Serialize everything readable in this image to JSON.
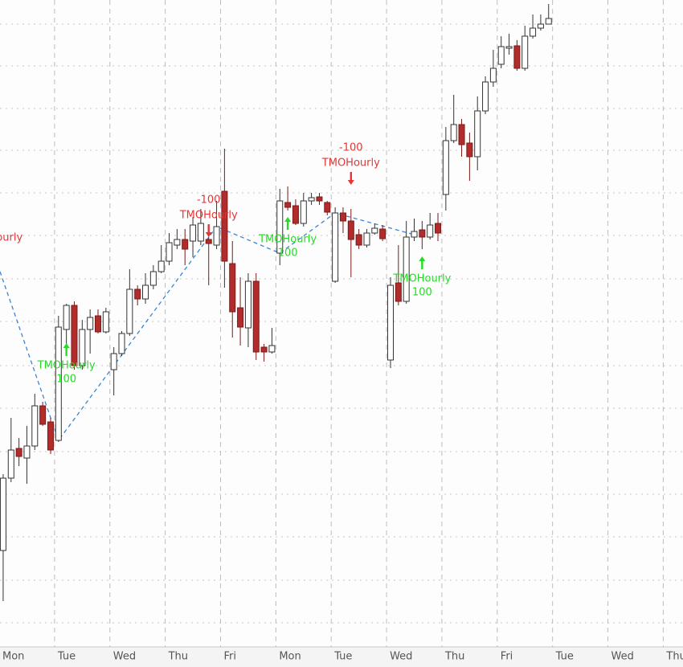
{
  "chart_data": {
    "type": "candlestick",
    "x": [
      0,
      1,
      2,
      3,
      4,
      5,
      6,
      7,
      8,
      9,
      10,
      11,
      12,
      13,
      14,
      15,
      16,
      17,
      18,
      19,
      20,
      21,
      22,
      23,
      24,
      25,
      26,
      27,
      28,
      29,
      30,
      31,
      32,
      33,
      34,
      35,
      36,
      37,
      38,
      39,
      40,
      41,
      42,
      43,
      44,
      45,
      46,
      47,
      48,
      49,
      50,
      51,
      52,
      53,
      54,
      55,
      56,
      57,
      58,
      59,
      60,
      61,
      62,
      63,
      64,
      65,
      66,
      67,
      68,
      69
    ],
    "open": [
      315,
      405,
      442,
      430,
      445,
      495,
      475,
      452,
      590,
      620,
      545,
      590,
      607,
      587,
      540,
      560,
      585,
      640,
      628,
      645,
      662,
      675,
      695,
      702,
      700,
      700,
      702,
      695,
      762,
      672,
      617,
      592,
      650,
      568,
      562,
      685,
      748,
      744,
      722,
      750,
      755,
      748,
      650,
      735,
      725,
      708,
      695,
      710,
      715,
      552,
      648,
      625,
      705,
      714,
      705,
      722,
      758,
      825,
      845,
      822,
      805,
      862,
      898,
      920,
      940,
      943,
      915,
      955,
      965,
      970
    ],
    "high": [
      410,
      480,
      455,
      470,
      510,
      500,
      480,
      607,
      622,
      625,
      602,
      615,
      615,
      617,
      568,
      588,
      665,
      645,
      660,
      670,
      695,
      710,
      715,
      715,
      730,
      740,
      720,
      750,
      815,
      700,
      655,
      660,
      660,
      572,
      592,
      765,
      768,
      752,
      760,
      760,
      760,
      750,
      742,
      742,
      740,
      715,
      715,
      722,
      720,
      655,
      695,
      725,
      728,
      725,
      735,
      735,
      842,
      882,
      852,
      835,
      880,
      905,
      938,
      955,
      958,
      950,
      968,
      982,
      982,
      995
    ],
    "low": [
      252,
      400,
      420,
      398,
      440,
      470,
      435,
      450,
      560,
      540,
      540,
      560,
      585,
      585,
      508,
      557,
      582,
      620,
      622,
      640,
      660,
      670,
      690,
      670,
      680,
      695,
      645,
      690,
      642,
      580,
      570,
      568,
      552,
      550,
      560,
      670,
      738,
      720,
      718,
      745,
      745,
      732,
      648,
      710,
      655,
      690,
      692,
      708,
      700,
      542,
      620,
      622,
      700,
      690,
      702,
      700,
      738,
      822,
      805,
      775,
      788,
      858,
      892,
      915,
      932,
      912,
      912,
      952,
      962,
      970
    ],
    "close": [
      405,
      440,
      432,
      445,
      495,
      472,
      440,
      593,
      620,
      545,
      590,
      605,
      587,
      612,
      560,
      585,
      640,
      628,
      645,
      662,
      675,
      698,
      702,
      690,
      720,
      722,
      697,
      718,
      675,
      612,
      593,
      650,
      562,
      562,
      570,
      750,
      742,
      722,
      750,
      754,
      750,
      736,
      735,
      725,
      702,
      695,
      710,
      716,
      703,
      645,
      625,
      705,
      712,
      705,
      720,
      710,
      825,
      845,
      820,
      805,
      862,
      898,
      915,
      942,
      942,
      915,
      955,
      965,
      970,
      977
    ],
    "up_color": "#ffffff",
    "down_color": "#b22c2c",
    "xlim": [
      -0.4,
      86
    ],
    "ylim": [
      195,
      1000
    ],
    "xticks": [
      {
        "value": -0.5,
        "label": "Mon"
      },
      {
        "value": 6.5,
        "label": "Tue"
      },
      {
        "value": 13.5,
        "label": "Wed"
      },
      {
        "value": 20.5,
        "label": "Thu"
      },
      {
        "value": 27.5,
        "label": "Fri"
      },
      {
        "value": 34.5,
        "label": "Mon"
      },
      {
        "value": 41.5,
        "label": "Tue"
      },
      {
        "value": 48.5,
        "label": "Wed"
      },
      {
        "value": 55.5,
        "label": "Thu"
      },
      {
        "value": 62.5,
        "label": "Fri"
      },
      {
        "value": 69.5,
        "label": "Tue"
      },
      {
        "value": 76.5,
        "label": "Wed"
      },
      {
        "value": 83.5,
        "label": "Thu"
      }
    ],
    "ygrid": [
      225,
      278,
      332,
      385,
      438,
      492,
      545,
      600,
      653,
      707,
      760,
      813,
      865,
      918,
      970
    ],
    "grid": true,
    "zigzag": {
      "color": "#3a86d4",
      "x": [
        -0.4,
        7,
        27,
        35,
        42,
        52
      ],
      "values": [
        662,
        452,
        718,
        685,
        735,
        708
      ]
    },
    "signals": [
      {
        "name": "TMOHourly",
        "side": "sell",
        "x": -1.2,
        "price": 685
      },
      {
        "name": "TMOHourly",
        "quantity": 100,
        "side": "buy",
        "x": 8,
        "price": 565
      },
      {
        "name": "TMOHourly",
        "quantity": -100,
        "side": "sell",
        "x": 26,
        "price": 713
      },
      {
        "name": "TMOHourly",
        "quantity": 100,
        "side": "buy",
        "x": 36,
        "price": 722
      },
      {
        "name": "TMOHourly",
        "quantity": -100,
        "side": "sell",
        "x": 44,
        "price": 778
      },
      {
        "name": "TMOHourly",
        "quantity": 100,
        "side": "buy",
        "x": 53,
        "price": 673
      }
    ],
    "buy_color": "#22dd22",
    "sell_color": "#e83535"
  }
}
